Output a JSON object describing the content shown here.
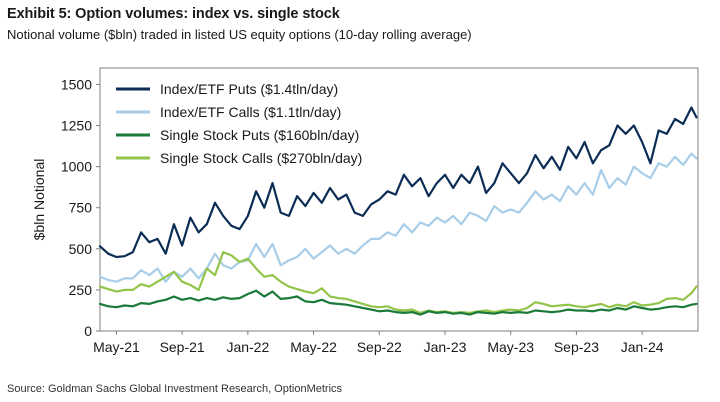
{
  "header": {
    "title": "Exhibit 5: Option volumes: index vs. single stock",
    "subtitle": "Notional volume ($bln) traded in listed US equity options (10-day rolling average)"
  },
  "footer": {
    "source": "Source: Goldman Sachs Global Investment Research, OptionMetrics"
  },
  "chart_data": {
    "type": "line",
    "title": "Exhibit 5: Option volumes: index vs. single stock",
    "subtitle": "Notional volume ($bln) traded in listed US equity options (10-day rolling average)",
    "xlabel": "",
    "ylabel": "$bln Notional",
    "ylim": [
      0,
      1600
    ],
    "yticks": [
      0,
      250,
      500,
      750,
      1000,
      1250,
      1500
    ],
    "xlim": [
      0,
      36.4
    ],
    "xtick_positions": [
      1,
      5,
      9,
      13,
      17,
      21,
      25,
      29,
      33
    ],
    "xtick_labels": [
      "May-21",
      "Sep-21",
      "Jan-22",
      "May-22",
      "Sep-22",
      "Jan-23",
      "May-23",
      "Sep-23",
      "Jan-24"
    ],
    "legend_position": "top-left",
    "grid": false,
    "x": [
      0,
      0.5,
      1,
      1.5,
      2,
      2.5,
      3,
      3.5,
      4,
      4.5,
      5,
      5.5,
      6,
      6.5,
      7,
      7.5,
      8,
      8.5,
      9,
      9.5,
      10,
      10.5,
      11,
      11.5,
      12,
      12.5,
      13,
      13.5,
      14,
      14.5,
      15,
      15.5,
      16,
      16.5,
      17,
      17.5,
      18,
      18.5,
      19,
      19.5,
      20,
      20.5,
      21,
      21.5,
      22,
      22.5,
      23,
      23.5,
      24,
      24.5,
      25,
      25.5,
      26,
      26.5,
      27,
      27.5,
      28,
      28.5,
      29,
      29.5,
      30,
      30.5,
      31,
      31.5,
      32,
      32.5,
      33,
      33.5,
      34,
      34.5,
      35,
      35.5,
      36,
      36.3
    ],
    "series": [
      {
        "name": "Index/ETF Puts ($1.4tln/day)",
        "color": "#0b2d55",
        "values": [
          515,
          470,
          450,
          455,
          480,
          600,
          540,
          560,
          470,
          650,
          520,
          690,
          600,
          650,
          780,
          700,
          640,
          620,
          700,
          850,
          750,
          900,
          720,
          700,
          820,
          760,
          840,
          780,
          870,
          800,
          830,
          720,
          700,
          770,
          800,
          850,
          830,
          950,
          880,
          930,
          820,
          900,
          950,
          870,
          950,
          900,
          1000,
          840,
          900,
          1020,
          960,
          900,
          960,
          1070,
          990,
          1060,
          980,
          1120,
          1050,
          1150,
          1020,
          1100,
          1130,
          1250,
          1200,
          1250,
          1150,
          1020,
          1220,
          1200,
          1290,
          1260,
          1360,
          1300
        ]
      },
      {
        "name": "Index/ETF Calls ($1.1tln/day)",
        "color": "#a8cde8",
        "values": [
          330,
          310,
          300,
          320,
          320,
          370,
          340,
          380,
          300,
          360,
          330,
          380,
          320,
          380,
          470,
          400,
          380,
          420,
          430,
          530,
          450,
          530,
          400,
          430,
          450,
          500,
          440,
          480,
          520,
          470,
          500,
          470,
          520,
          560,
          560,
          600,
          580,
          650,
          600,
          660,
          640,
          690,
          660,
          700,
          650,
          720,
          700,
          670,
          760,
          720,
          740,
          720,
          780,
          850,
          800,
          830,
          790,
          880,
          830,
          900,
          830,
          980,
          870,
          930,
          890,
          1000,
          960,
          930,
          1020,
          1000,
          1060,
          1010,
          1080,
          1050
        ]
      },
      {
        "name": "Single Stock Puts ($160bln/day)",
        "color": "#1b7a3a",
        "values": [
          165,
          150,
          145,
          155,
          150,
          170,
          165,
          180,
          190,
          210,
          190,
          200,
          185,
          200,
          190,
          205,
          195,
          200,
          225,
          245,
          210,
          240,
          195,
          200,
          210,
          180,
          175,
          190,
          170,
          165,
          160,
          150,
          140,
          130,
          120,
          125,
          115,
          110,
          115,
          100,
          120,
          110,
          115,
          105,
          110,
          100,
          115,
          110,
          105,
          115,
          110,
          115,
          110,
          125,
          120,
          115,
          120,
          130,
          125,
          125,
          120,
          130,
          125,
          140,
          130,
          150,
          140,
          130,
          135,
          145,
          150,
          145,
          160,
          165
        ]
      },
      {
        "name": "Single Stock Calls ($270bln/day)",
        "color": "#93c44a",
        "values": [
          270,
          255,
          240,
          250,
          250,
          285,
          270,
          300,
          330,
          360,
          300,
          280,
          250,
          380,
          340,
          480,
          460,
          420,
          440,
          380,
          330,
          340,
          300,
          270,
          255,
          240,
          230,
          260,
          210,
          200,
          195,
          180,
          165,
          150,
          145,
          150,
          130,
          125,
          130,
          110,
          125,
          115,
          120,
          110,
          115,
          110,
          120,
          125,
          115,
          125,
          130,
          125,
          140,
          175,
          165,
          150,
          155,
          160,
          150,
          145,
          155,
          165,
          145,
          160,
          150,
          175,
          155,
          160,
          170,
          195,
          200,
          190,
          230,
          270
        ]
      }
    ]
  }
}
